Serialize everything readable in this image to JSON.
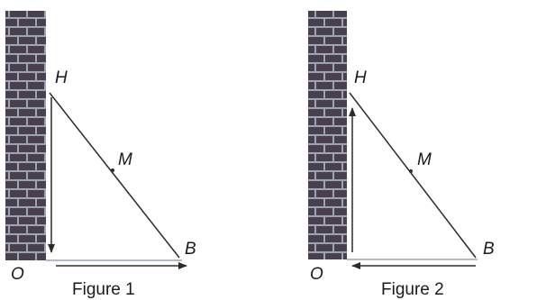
{
  "figures": [
    {
      "caption": "Figure 1",
      "points": {
        "H": "H",
        "M": "M",
        "O": "O",
        "B": "B"
      },
      "vertical_arrow": "down",
      "horizontal_arrow": "right"
    },
    {
      "caption": "Figure 2",
      "points": {
        "H": "H",
        "M": "M",
        "O": "O",
        "B": "B"
      },
      "vertical_arrow": "up",
      "horizontal_arrow": "left"
    }
  ],
  "colors": {
    "brick": "#4a3f4d",
    "mortar": "#9aa6b4",
    "line": "#2b2b2b"
  }
}
